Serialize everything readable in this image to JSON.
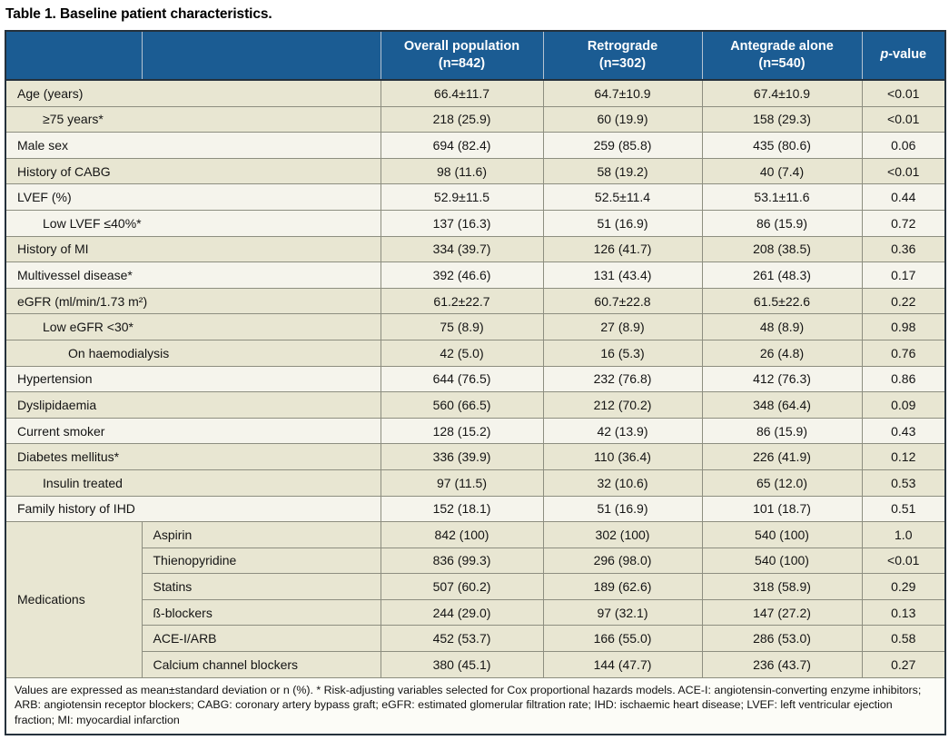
{
  "title": "Table 1. Baseline patient characteristics.",
  "colors": {
    "header_bg": "#1b5c93",
    "header_text": "#ffffff",
    "header_divider": "#b5c3d2",
    "row_beige": "#e8e6d2",
    "row_white": "#f5f4ec",
    "grid_line": "#8d8e80",
    "outer_border": "#25313c"
  },
  "table": {
    "columns": [
      {
        "label": "Overall population",
        "sub": "(n=842)"
      },
      {
        "label": "Retrograde",
        "sub": "(n=302)"
      },
      {
        "label": "Antegrade alone",
        "sub": "(n=540)"
      }
    ],
    "p_header": {
      "italic": "p",
      "rest": "-value"
    },
    "rows": [
      {
        "label": "Age (years)",
        "indent": 0,
        "bg": "beige",
        "values": [
          "66.4±11.7",
          "64.7±10.9",
          "67.4±10.9"
        ],
        "p": "<0.01"
      },
      {
        "label": "≥75 years*",
        "indent": 1,
        "bg": "beige",
        "values": [
          "218 (25.9)",
          "60 (19.9)",
          "158 (29.3)"
        ],
        "p": "<0.01"
      },
      {
        "label": "Male sex",
        "indent": 0,
        "bg": "white",
        "values": [
          "694 (82.4)",
          "259 (85.8)",
          "435 (80.6)"
        ],
        "p": "0.06"
      },
      {
        "label": "History of CABG",
        "indent": 0,
        "bg": "beige",
        "values": [
          "98 (11.6)",
          "58 (19.2)",
          "40 (7.4)"
        ],
        "p": "<0.01"
      },
      {
        "label": "LVEF (%)",
        "indent": 0,
        "bg": "white",
        "values": [
          "52.9±11.5",
          "52.5±11.4",
          "53.1±11.6"
        ],
        "p": "0.44"
      },
      {
        "label": "Low LVEF ≤40%*",
        "indent": 1,
        "bg": "white",
        "values": [
          "137 (16.3)",
          "51 (16.9)",
          "86 (15.9)"
        ],
        "p": "0.72"
      },
      {
        "label": "History of MI",
        "indent": 0,
        "bg": "beige",
        "values": [
          "334 (39.7)",
          "126 (41.7)",
          "208 (38.5)"
        ],
        "p": "0.36"
      },
      {
        "label": "Multivessel disease*",
        "indent": 0,
        "bg": "white",
        "values": [
          "392 (46.6)",
          "131 (43.4)",
          "261 (48.3)"
        ],
        "p": "0.17"
      },
      {
        "label": "eGFR (ml/min/1.73 m²)",
        "indent": 0,
        "bg": "beige",
        "values": [
          "61.2±22.7",
          "60.7±22.8",
          "61.5±22.6"
        ],
        "p": "0.22"
      },
      {
        "label": "Low eGFR <30*",
        "indent": 1,
        "bg": "beige",
        "values": [
          "75 (8.9)",
          "27 (8.9)",
          "48 (8.9)"
        ],
        "p": "0.98"
      },
      {
        "label": "On haemodialysis",
        "indent": 2,
        "bg": "beige",
        "values": [
          "42 (5.0)",
          "16 (5.3)",
          "26 (4.8)"
        ],
        "p": "0.76"
      },
      {
        "label": "Hypertension",
        "indent": 0,
        "bg": "white",
        "values": [
          "644 (76.5)",
          "232 (76.8)",
          "412 (76.3)"
        ],
        "p": "0.86"
      },
      {
        "label": "Dyslipidaemia",
        "indent": 0,
        "bg": "beige",
        "values": [
          "560 (66.5)",
          "212 (70.2)",
          "348 (64.4)"
        ],
        "p": "0.09"
      },
      {
        "label": "Current smoker",
        "indent": 0,
        "bg": "white",
        "values": [
          "128 (15.2)",
          "42 (13.9)",
          "86 (15.9)"
        ],
        "p": "0.43"
      },
      {
        "label": "Diabetes mellitus*",
        "indent": 0,
        "bg": "beige",
        "values": [
          "336 (39.9)",
          "110 (36.4)",
          "226 (41.9)"
        ],
        "p": "0.12"
      },
      {
        "label": "Insulin treated",
        "indent": 1,
        "bg": "beige",
        "values": [
          "97 (11.5)",
          "32 (10.6)",
          "65 (12.0)"
        ],
        "p": "0.53"
      },
      {
        "label": "Family history of IHD",
        "indent": 0,
        "bg": "white",
        "values": [
          "152 (18.1)",
          "51 (16.9)",
          "101 (18.7)"
        ],
        "p": "0.51"
      },
      {
        "label": "Aspirin",
        "in_section": true,
        "section": "Medications",
        "section_rowspan": 6,
        "bg": "beige",
        "values": [
          "842 (100)",
          "302 (100)",
          "540 (100)"
        ],
        "p": "1.0"
      },
      {
        "label": "Thienopyridine",
        "in_section": true,
        "bg": "beige",
        "values": [
          "836 (99.3)",
          "296 (98.0)",
          "540 (100)"
        ],
        "p": "<0.01"
      },
      {
        "label": "Statins",
        "in_section": true,
        "bg": "beige",
        "values": [
          "507 (60.2)",
          "189 (62.6)",
          "318 (58.9)"
        ],
        "p": "0.29"
      },
      {
        "label": "ß-blockers",
        "in_section": true,
        "bg": "beige",
        "values": [
          "244 (29.0)",
          "97 (32.1)",
          "147 (27.2)"
        ],
        "p": "0.13"
      },
      {
        "label": "ACE-I/ARB",
        "in_section": true,
        "bg": "beige",
        "values": [
          "452 (53.7)",
          "166 (55.0)",
          "286 (53.0)"
        ],
        "p": "0.58"
      },
      {
        "label": "Calcium channel blockers",
        "in_section": true,
        "bg": "beige",
        "values": [
          "380 (45.1)",
          "144 (47.7)",
          "236 (43.7)"
        ],
        "p": "0.27"
      }
    ],
    "footnote": "Values are expressed as mean±standard deviation or n (%). * Risk-adjusting variables selected for Cox proportional hazards models. ACE-I: angiotensin-converting enzyme inhibitors; ARB: angiotensin receptor blockers; CABG: coronary artery bypass graft; eGFR: estimated glomerular filtration rate; IHD: ischaemic heart disease; LVEF: left ventricular ejection fraction; MI: myocardial infarction"
  }
}
